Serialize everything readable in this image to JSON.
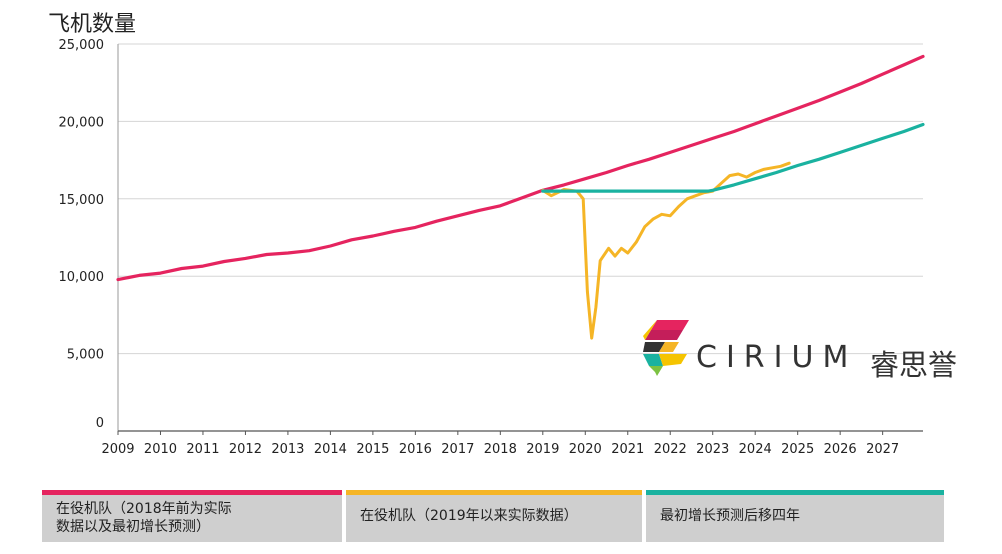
{
  "chart_data": {
    "type": "line",
    "title": "飞机数量",
    "xlabel": "",
    "ylabel": "飞机数量",
    "x_ticks": [
      "2009",
      "2010",
      "2011",
      "2012",
      "2013",
      "2014",
      "2015",
      "2016",
      "2017",
      "2018",
      "2019",
      "2020",
      "2021",
      "2022",
      "2023",
      "2024",
      "2025",
      "2026",
      "2027"
    ],
    "y_ticks": [
      "0",
      "5,000",
      "10,000",
      "15,000",
      "20,000",
      "25,000"
    ],
    "xlim": [
      2009.0,
      2027.95
    ],
    "ylim": [
      0,
      25000
    ],
    "grid": "horizontal",
    "series": [
      {
        "name": "在役机队（2018年前为实际数据以及最初增长预测）",
        "color": "#e5245f",
        "points": [
          [
            2009.0,
            9780
          ],
          [
            2009.5,
            10050
          ],
          [
            2010.0,
            10200
          ],
          [
            2010.5,
            10500
          ],
          [
            2011.0,
            10650
          ],
          [
            2011.5,
            10950
          ],
          [
            2012.0,
            11150
          ],
          [
            2012.5,
            11400
          ],
          [
            2013.0,
            11500
          ],
          [
            2013.5,
            11650
          ],
          [
            2014.0,
            11950
          ],
          [
            2014.5,
            12350
          ],
          [
            2015.0,
            12600
          ],
          [
            2015.5,
            12900
          ],
          [
            2016.0,
            13150
          ],
          [
            2016.5,
            13550
          ],
          [
            2017.0,
            13900
          ],
          [
            2017.5,
            14250
          ],
          [
            2018.0,
            14550
          ],
          [
            2018.5,
            15050
          ],
          [
            2019.0,
            15550
          ],
          [
            2019.5,
            15900
          ],
          [
            2020.0,
            16300
          ],
          [
            2020.5,
            16700
          ],
          [
            2021.0,
            17150
          ],
          [
            2021.5,
            17550
          ],
          [
            2022.0,
            18000
          ],
          [
            2022.5,
            18450
          ],
          [
            2023.0,
            18900
          ],
          [
            2023.5,
            19350
          ],
          [
            2024.0,
            19850
          ],
          [
            2024.5,
            20350
          ],
          [
            2025.0,
            20850
          ],
          [
            2025.5,
            21350
          ],
          [
            2026.0,
            21900
          ],
          [
            2026.5,
            22450
          ],
          [
            2027.0,
            23050
          ],
          [
            2027.5,
            23650
          ],
          [
            2027.95,
            24200
          ]
        ]
      },
      {
        "name": "在役机队（2019年以来实际数据）",
        "color": "#f5b526",
        "points": [
          [
            2019.0,
            15550
          ],
          [
            2019.2,
            15200
          ],
          [
            2019.5,
            15600
          ],
          [
            2019.8,
            15500
          ],
          [
            2019.95,
            15000
          ],
          [
            2020.05,
            9000
          ],
          [
            2020.15,
            6000
          ],
          [
            2020.25,
            8000
          ],
          [
            2020.35,
            11000
          ],
          [
            2020.55,
            11800
          ],
          [
            2020.7,
            11300
          ],
          [
            2020.85,
            11800
          ],
          [
            2021.0,
            11500
          ],
          [
            2021.2,
            12200
          ],
          [
            2021.4,
            13200
          ],
          [
            2021.6,
            13700
          ],
          [
            2021.8,
            14000
          ],
          [
            2022.0,
            13900
          ],
          [
            2022.2,
            14500
          ],
          [
            2022.4,
            15000
          ],
          [
            2022.6,
            15200
          ],
          [
            2022.8,
            15400
          ],
          [
            2023.0,
            15500
          ],
          [
            2023.2,
            16000
          ],
          [
            2023.4,
            16500
          ],
          [
            2023.6,
            16600
          ],
          [
            2023.8,
            16400
          ],
          [
            2024.0,
            16700
          ],
          [
            2024.2,
            16900
          ],
          [
            2024.4,
            17000
          ],
          [
            2024.6,
            17100
          ],
          [
            2024.8,
            17300
          ]
        ]
      },
      {
        "name": "最初增长预测后移四年",
        "color": "#1ab2a0",
        "points": [
          [
            2019.0,
            15500
          ],
          [
            2019.5,
            15500
          ],
          [
            2020.0,
            15500
          ],
          [
            2021.0,
            15500
          ],
          [
            2022.0,
            15500
          ],
          [
            2022.9,
            15500
          ],
          [
            2023.0,
            15550
          ],
          [
            2023.5,
            15900
          ],
          [
            2024.0,
            16300
          ],
          [
            2024.5,
            16700
          ],
          [
            2025.0,
            17150
          ],
          [
            2025.5,
            17550
          ],
          [
            2026.0,
            18000
          ],
          [
            2026.5,
            18450
          ],
          [
            2027.0,
            18900
          ],
          [
            2027.5,
            19350
          ],
          [
            2027.95,
            19800
          ]
        ]
      }
    ]
  },
  "legend": {
    "item1": "在役机队（2018年前为实际\n数据以及最初增长预测）",
    "item2": "在役机队（2019年以来实际数据）",
    "item3": "最初增长预测后移四年"
  },
  "logo": {
    "wordmark": "CIRIUM",
    "chinese": "睿思誉"
  }
}
